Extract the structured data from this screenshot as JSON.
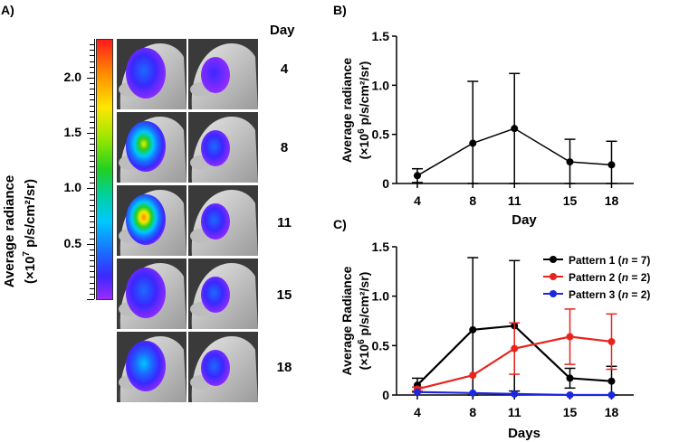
{
  "panel_a": {
    "label": "A)",
    "colorbar_title_line1": "Average radiance",
    "colorbar_title_line2": "(×10",
    "colorbar_title_sup": "7",
    "colorbar_title_line2b": " p/s/cm²/sr)",
    "colorbar_ticks": [
      "2.0",
      "1.5",
      "1.0",
      "0.5"
    ],
    "colorbar_tick_values": [
      2.0,
      1.5,
      1.0,
      0.5
    ],
    "colorbar_max": 2.35,
    "day_header": "Day",
    "days": [
      "4",
      "8",
      "11",
      "15",
      "18"
    ],
    "intensity_left": [
      0.35,
      0.85,
      0.95,
      0.3,
      0.45
    ],
    "intensity_right": [
      0.2,
      0.35,
      0.3,
      0.35,
      0.3
    ]
  },
  "panel_b_label": "B)",
  "panel_c_label": "C)",
  "chart_data": [
    {
      "type": "line",
      "panel": "B",
      "title": "",
      "xlabel": "Day",
      "ylabel_line1": "Average radiance",
      "ylabel_line2_pre": "(×10",
      "ylabel_sup": "6",
      "ylabel_line2_post": " p/s/cm²/sr)",
      "x": [
        4,
        8,
        11,
        15,
        18
      ],
      "x_tick_labels": [
        "4",
        "8",
        "11",
        "15",
        "18"
      ],
      "ylim": [
        0,
        1.5
      ],
      "y_tick_labels": [
        "0",
        "0.5",
        "1.0",
        "1.5"
      ],
      "y_ticks": [
        0,
        0.5,
        1.0,
        1.5
      ],
      "series": [
        {
          "name": "All",
          "color": "#000000",
          "values": [
            0.08,
            0.41,
            0.56,
            0.22,
            0.19
          ],
          "errors": [
            0.07,
            0.63,
            0.56,
            0.23,
            0.24
          ]
        }
      ]
    },
    {
      "type": "line",
      "panel": "C",
      "title": "",
      "xlabel": "Days",
      "ylabel_line1": "Average Radiance",
      "ylabel_line2_pre": "(×10",
      "ylabel_sup": "6",
      "ylabel_line2_post": " p/s/cm²/sr)",
      "x": [
        4,
        8,
        11,
        15,
        18
      ],
      "x_tick_labels": [
        "4",
        "8",
        "11",
        "15",
        "18"
      ],
      "ylim": [
        0,
        1.5
      ],
      "y_tick_labels": [
        "0",
        "0.5",
        "1.0",
        "1.5"
      ],
      "y_ticks": [
        0,
        0.5,
        1.0,
        1.5
      ],
      "legend_position": "top-right",
      "series": [
        {
          "name": "Pattern 1",
          "n_label": "n",
          "n_value": " = 7",
          "color": "#000000",
          "values": [
            0.1,
            0.66,
            0.7,
            0.17,
            0.14
          ],
          "errors": [
            0.07,
            0.73,
            0.66,
            0.1,
            0.15
          ]
        },
        {
          "name": "Pattern 2",
          "n_label": "n",
          "n_value": " = 2",
          "color": "#e8241c",
          "values": [
            0.06,
            0.2,
            0.47,
            0.59,
            0.54
          ],
          "errors": [
            0.02,
            0.0,
            0.26,
            0.28,
            0.28
          ]
        },
        {
          "name": "Pattern 3",
          "n_label": "n",
          "n_value": " = 2",
          "color": "#1c27e0",
          "values": [
            0.03,
            0.02,
            0.01,
            0.0,
            0.0
          ],
          "errors": [
            0.0,
            0.0,
            0.0,
            0.0,
            0.0
          ]
        }
      ]
    }
  ]
}
